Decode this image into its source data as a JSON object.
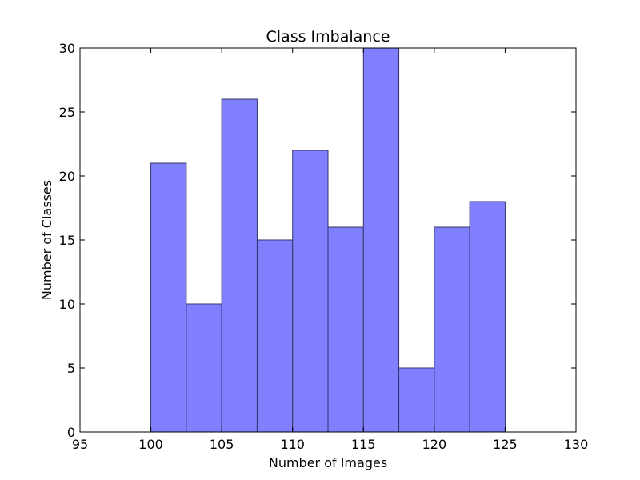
{
  "chart_data": {
    "type": "bar",
    "title": "Class Imbalance",
    "xlabel": "Number of Images",
    "ylabel": "Number of Classes",
    "xlim": [
      95,
      130
    ],
    "ylim": [
      0,
      30
    ],
    "xticks": [
      95,
      100,
      105,
      110,
      115,
      120,
      125,
      130
    ],
    "yticks": [
      0,
      5,
      10,
      15,
      20,
      25,
      30
    ],
    "bins": [
      {
        "start": 100,
        "end": 102.5,
        "value": 21
      },
      {
        "start": 102.5,
        "end": 105,
        "value": 10
      },
      {
        "start": 105,
        "end": 107.5,
        "value": 26
      },
      {
        "start": 107.5,
        "end": 110,
        "value": 15
      },
      {
        "start": 110,
        "end": 112.5,
        "value": 22
      },
      {
        "start": 112.5,
        "end": 115,
        "value": 16
      },
      {
        "start": 115,
        "end": 117.5,
        "value": 30
      },
      {
        "start": 117.5,
        "end": 120,
        "value": 5
      },
      {
        "start": 120,
        "end": 122.5,
        "value": 16
      },
      {
        "start": 122.5,
        "end": 125,
        "value": 18
      }
    ],
    "bar_color": "#8080ff",
    "bar_edge_color": "#333366",
    "grid": false,
    "legend": "none"
  }
}
